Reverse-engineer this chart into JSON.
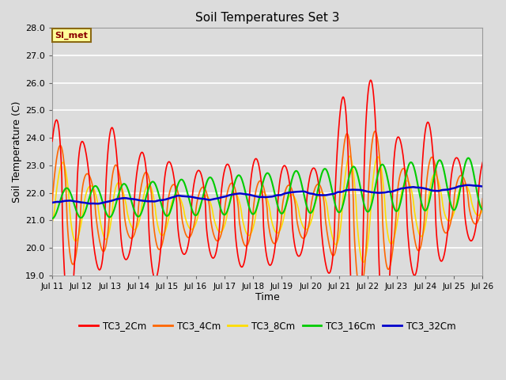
{
  "title": "Soil Temperatures Set 3",
  "xlabel": "Time",
  "ylabel": "Soil Temperature (C)",
  "ylim": [
    19.0,
    28.0
  ],
  "yticks": [
    19.0,
    20.0,
    21.0,
    22.0,
    23.0,
    24.0,
    25.0,
    26.0,
    27.0,
    28.0
  ],
  "x_month": "Jul",
  "xtick_days": [
    11,
    12,
    13,
    14,
    15,
    16,
    17,
    18,
    19,
    20,
    21,
    22,
    23,
    24,
    25,
    26
  ],
  "annotation_text": "SI_met",
  "annotation_color": "#8B0000",
  "annotation_bg": "#FFFF99",
  "annotation_border": "#8B6914",
  "colors": {
    "TC3_2Cm": "#FF0000",
    "TC3_4Cm": "#FF6600",
    "TC3_8Cm": "#FFDD00",
    "TC3_16Cm": "#00CC00",
    "TC3_32Cm": "#0000CC"
  },
  "lw": {
    "TC3_2Cm": 1.2,
    "TC3_4Cm": 1.2,
    "TC3_8Cm": 1.2,
    "TC3_16Cm": 1.5,
    "TC3_32Cm": 1.8
  },
  "bg_color": "#DCDCDC",
  "grid_color": "#FFFFFF",
  "legend_labels": [
    "TC3_2Cm",
    "TC3_4Cm",
    "TC3_8Cm",
    "TC3_16Cm",
    "TC3_32Cm"
  ],
  "legend_colors": [
    "#FF0000",
    "#FF6600",
    "#FFDD00",
    "#00CC00",
    "#0000CC"
  ]
}
